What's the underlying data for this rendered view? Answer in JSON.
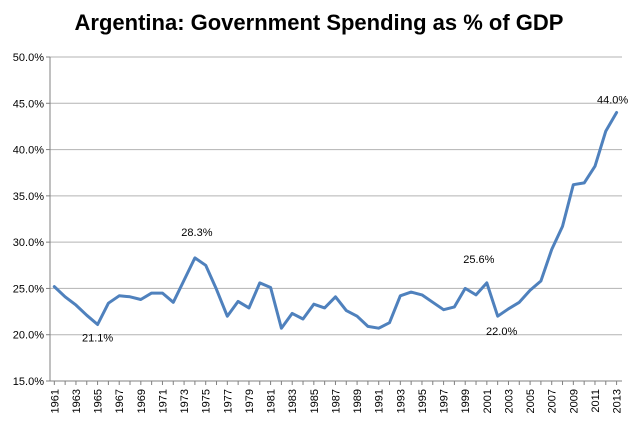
{
  "chart_data": {
    "type": "line",
    "title": "Argentina: Government Spending as % of GDP",
    "xlabel": "",
    "ylabel": "",
    "ylim": [
      15,
      50
    ],
    "y_ticks": [
      "15.0%",
      "20.0%",
      "25.0%",
      "30.0%",
      "35.0%",
      "40.0%",
      "45.0%",
      "50.0%"
    ],
    "x_tick_labels": [
      "1961",
      "1963",
      "1965",
      "1967",
      "1969",
      "1971",
      "1973",
      "1975",
      "1977",
      "1979",
      "1981",
      "1983",
      "1985",
      "1987",
      "1989",
      "1991",
      "1993",
      "1995",
      "1997",
      "1999",
      "2001",
      "2003",
      "2005",
      "2007",
      "2009",
      "2011",
      "2013"
    ],
    "grid": true,
    "line_color": "#4F81BD",
    "series": [
      {
        "x": [
          1961,
          1962,
          1963,
          1964,
          1965,
          1966,
          1967,
          1968,
          1969,
          1970,
          1971,
          1972,
          1973,
          1974,
          1975,
          1976,
          1977,
          1978,
          1979,
          1980,
          1981,
          1982,
          1983,
          1984,
          1985,
          1986,
          1987,
          1988,
          1989,
          1990,
          1991,
          1992,
          1993,
          1994,
          1995,
          1996,
          1997,
          1998,
          1999,
          2000,
          2001,
          2002,
          2003,
          2004,
          2005,
          2006,
          2007,
          2008,
          2009,
          2010,
          2011,
          2012,
          2013
        ],
        "values": [
          25.2,
          24.1,
          23.2,
          22.1,
          21.1,
          23.4,
          24.2,
          24.1,
          23.8,
          24.5,
          24.5,
          23.5,
          25.9,
          28.3,
          27.5,
          24.9,
          22.0,
          23.6,
          22.9,
          25.6,
          25.1,
          20.7,
          22.3,
          21.7,
          23.3,
          22.9,
          24.1,
          22.6,
          22.0,
          20.9,
          20.7,
          21.3,
          24.2,
          24.6,
          24.3,
          23.5,
          22.7,
          23.0,
          25.0,
          24.3,
          25.6,
          22.0,
          22.8,
          23.5,
          24.8,
          25.8,
          29.2,
          31.7,
          36.2,
          36.4,
          38.2,
          42.0,
          44.0
        ]
      }
    ],
    "data_labels": [
      {
        "x": 1965,
        "text": "21.1%"
      },
      {
        "x": 1974,
        "text": "28.3%"
      },
      {
        "x": 2001,
        "text": "25.6%"
      },
      {
        "x": 2002,
        "text": "22.0%"
      },
      {
        "x": 2013,
        "text": "44.0%"
      }
    ]
  }
}
